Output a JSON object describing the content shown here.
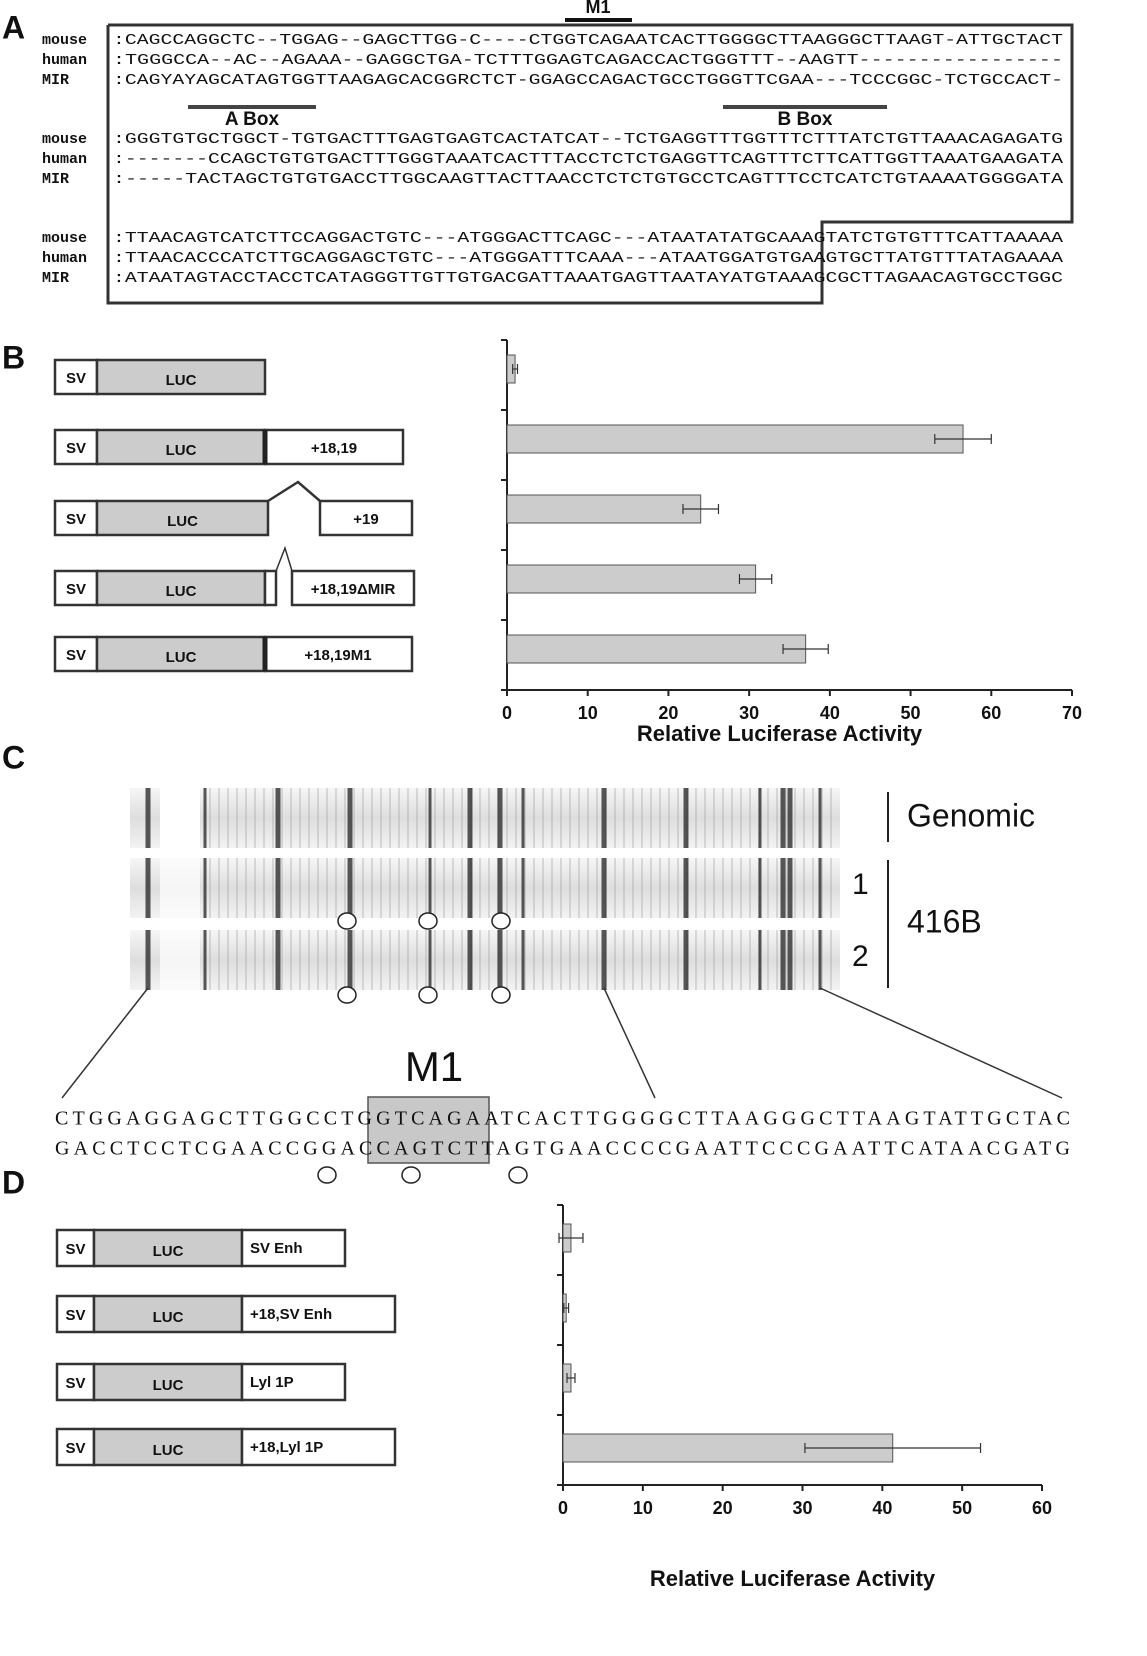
{
  "panels": {
    "a": {
      "letter": "A",
      "motif": "M1",
      "a_box": "A Box",
      "b_box": "B Box",
      "blocks": [
        [
          {
            "label": "mouse",
            "seq": ":CAGCCAGGCTC--TGGAG--GAGCTTGG-C----CTGGTCAGAATCACTTGGGGCTTAAGGGCTTAAGT-ATTGCTACT"
          },
          {
            "label": "human",
            "seq": ":TGGGCCA--AC--AGAAA--GAGGCTGA-TCTTTGGAGTCAGACCACTGGGTTT--AAGTT-----------------"
          },
          {
            "label": "MIR",
            "seq": ":CAGYAYAGCATAGTGGTTAAGAGCACGGRCTCT-GGAGCCAGACTGCCTGGGTTCGAA---TCCCGGC-TCTGCCACT-"
          }
        ],
        [
          {
            "label": "mouse",
            "seq": ":GGGTGTGCTGGCT-TGTGACTTTGAGTGAGTCACTATCAT--TCTGAGGTTTGGTTTCTTTATCTGTTAAACAGAGATG"
          },
          {
            "label": "human",
            "seq": ":-------CCAGCTGTGTGACTTTGGGTAAATCACTTTACCTCTCTGAGGTTCAGTTTCTTCATTGGTTAAATGAAGATA"
          },
          {
            "label": "MIR",
            "seq": ":-----TACTAGCTGTGTGACCTTGGCAAGTTACTTAACCTCTCTGTGCCTCAGTTTCCTCATCTGTAAAATGGGGATA"
          }
        ],
        [
          {
            "label": "mouse",
            "seq": ":TTAACAGTCATCTTCCAGGACTGTC---ATGGGACTTCAGC---ATAATATATGCAAAGTATCTGTGTTTCATTAAAAA"
          },
          {
            "label": "human",
            "seq": ":TTAACACCCATCTTGCAGGAGCTGTC---ATGGGATTTCAAA---ATAATGGATGTGAAGTGCTTATGTTTATAGAAAA"
          },
          {
            "label": "MIR",
            "seq": ":ATAATAGTACCTACCTCATAGGGTTGTTGTGACGATTAAATGAGTTAATAYATGTAAAGCGCTTAGAACAGTGCCTGGC"
          }
        ]
      ]
    },
    "b": {
      "letter": "B",
      "sv": "SV",
      "luc": "LUC"
    },
    "c": {
      "letter": "C",
      "genomic": "Genomic",
      "lane1": "1",
      "lane2": "2",
      "clone": "416B",
      "motif": "M1",
      "top_strand": "CTGGAGGAGCTTGGCCTGGTCAGAATCACTTGGGGCTTAAGGGCTTAAGTATTGCTAC",
      "bottom_strand": "GACCTCCTCGAACCGGACCAGTCTTAGTGAACCCCGAATTCCCGAATTCATAACGATG"
    },
    "d": {
      "letter": "D",
      "sv": "SV",
      "luc": "LUC"
    }
  },
  "chart_data": [
    {
      "type": "bar",
      "orientation": "horizontal",
      "categories": [
        null,
        "+18,19",
        "+19",
        "+18,19ΔMIR",
        "+18,19M1"
      ],
      "values": [
        1,
        56.5,
        24,
        30.8,
        37
      ],
      "errors": [
        0.3,
        3.5,
        2.2,
        2,
        2.8
      ],
      "color": "#cccccc",
      "xlim": [
        0,
        70
      ],
      "xticks": [
        0,
        10,
        20,
        30,
        40,
        50,
        60,
        70
      ],
      "xlabel": "Relative Luciferase Activity"
    },
    {
      "type": "bar",
      "orientation": "horizontal",
      "categories": [
        "SV Enh",
        "+18,SV Enh",
        "Lyl 1P",
        "+18,Lyl 1P"
      ],
      "values": [
        1,
        0.4,
        1,
        41.3
      ],
      "errors": [
        1.5,
        0.3,
        0.5,
        11
      ],
      "color": "#cccccc",
      "xlim": [
        0,
        60
      ],
      "xticks": [
        0,
        10,
        20,
        30,
        40,
        50,
        60
      ],
      "xlabel": "Relative Luciferase Activity"
    }
  ]
}
